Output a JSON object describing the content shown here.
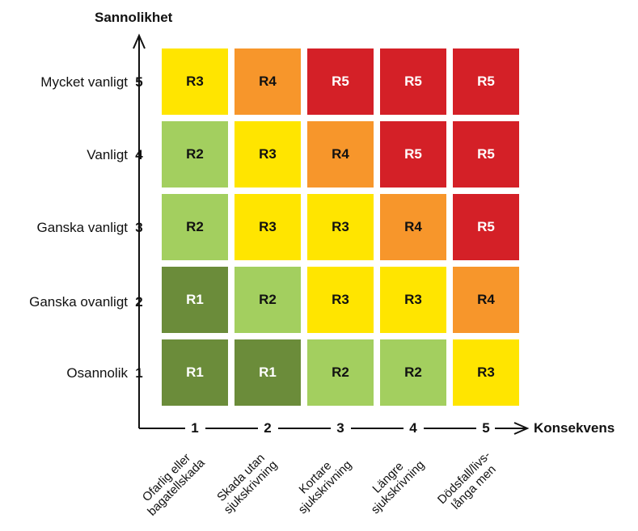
{
  "titles": {
    "y_axis": "Sannolikhet",
    "x_axis": "Konsekvens"
  },
  "y_levels": [
    {
      "num": "5",
      "label": "Mycket vanligt"
    },
    {
      "num": "4",
      "label": "Vanligt"
    },
    {
      "num": "3",
      "label": "Ganska vanligt"
    },
    {
      "num": "2",
      "label": "Ganska ovanligt"
    },
    {
      "num": "1",
      "label": "Osannolik"
    }
  ],
  "x_levels": [
    {
      "num": "1",
      "label_line1": "Ofarlig eller",
      "label_line2": "bagatellskada"
    },
    {
      "num": "2",
      "label_line1": "Skada utan",
      "label_line2": "sjukskrivning"
    },
    {
      "num": "3",
      "label_line1": "Kortare",
      "label_line2": "sjukskrivning"
    },
    {
      "num": "4",
      "label_line1": "Längre",
      "label_line2": "sjukskrivning"
    },
    {
      "num": "5",
      "label_line1": "Dödsfall/livs-",
      "label_line2": "långa men"
    }
  ],
  "matrix": [
    [
      "R3",
      "R4",
      "R5",
      "R5",
      "R5"
    ],
    [
      "R2",
      "R3",
      "R4",
      "R5",
      "R5"
    ],
    [
      "R2",
      "R3",
      "R3",
      "R4",
      "R5"
    ],
    [
      "R1",
      "R2",
      "R3",
      "R3",
      "R4"
    ],
    [
      "R1",
      "R1",
      "R2",
      "R2",
      "R3"
    ]
  ],
  "risk_colors": {
    "R1": {
      "bg": "#6b8c3a",
      "fg": "#ffffff"
    },
    "R2": {
      "bg": "#a3cf5f",
      "fg": "#111111"
    },
    "R3": {
      "bg": "#ffe500",
      "fg": "#111111"
    },
    "R4": {
      "bg": "#f7962b",
      "fg": "#111111"
    },
    "R5": {
      "bg": "#d42027",
      "fg": "#ffffff"
    }
  }
}
